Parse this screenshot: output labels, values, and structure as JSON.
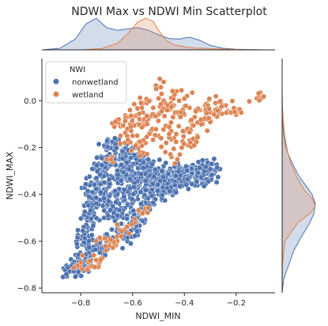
{
  "chart_data": {
    "type": "scatter",
    "title": "NDWI Max vs NDWI Min Scatterplot",
    "xlabel": "NDWI_MIN",
    "ylabel": "NDWI_MAX",
    "xlim": [
      -0.95,
      -0.05
    ],
    "ylim": [
      -0.82,
      0.18
    ],
    "xticks": [
      -0.8,
      -0.6,
      -0.4,
      -0.2
    ],
    "xtick_labels": [
      "−0.8",
      "−0.6",
      "−0.4",
      "−0.2"
    ],
    "yticks": [
      -0.8,
      -0.6,
      -0.4,
      -0.2,
      0.0
    ],
    "ytick_labels": [
      "−0.8",
      "−0.6",
      "−0.4",
      "−0.2",
      "0.0"
    ],
    "legend": {
      "title": "NWI",
      "position": "upper-left",
      "entries": [
        "nonwetland",
        "wetland"
      ]
    },
    "colors": {
      "nonwetland": "#4c72b0",
      "wetland": "#dd8452",
      "axis": "#262626",
      "marker_edge": "#ffffff"
    },
    "series": [
      {
        "name": "nonwetland",
        "description_points": [
          [
            -0.82,
            -0.72
          ],
          [
            -0.8,
            -0.71
          ],
          [
            -0.78,
            -0.66
          ],
          [
            -0.79,
            -0.6
          ],
          [
            -0.77,
            -0.55
          ],
          [
            -0.75,
            -0.48
          ],
          [
            -0.74,
            -0.42
          ],
          [
            -0.76,
            -0.35
          ],
          [
            -0.73,
            -0.3
          ],
          [
            -0.71,
            -0.25
          ],
          [
            -0.7,
            -0.21
          ],
          [
            -0.68,
            -0.18
          ],
          [
            -0.66,
            -0.2
          ],
          [
            -0.64,
            -0.22
          ],
          [
            -0.62,
            -0.25
          ],
          [
            -0.6,
            -0.2
          ],
          [
            -0.58,
            -0.28
          ],
          [
            -0.56,
            -0.31
          ],
          [
            -0.54,
            -0.33
          ],
          [
            -0.52,
            -0.3
          ],
          [
            -0.5,
            -0.33
          ],
          [
            -0.48,
            -0.35
          ],
          [
            -0.46,
            -0.34
          ],
          [
            -0.44,
            -0.32
          ],
          [
            -0.42,
            -0.33
          ],
          [
            -0.4,
            -0.31
          ],
          [
            -0.38,
            -0.35
          ],
          [
            -0.36,
            -0.3
          ],
          [
            -0.33,
            -0.33
          ],
          [
            -0.32,
            -0.29
          ],
          [
            -0.8,
            -0.58
          ],
          [
            -0.78,
            -0.5
          ],
          [
            -0.76,
            -0.44
          ],
          [
            -0.74,
            -0.38
          ],
          [
            -0.72,
            -0.35
          ],
          [
            -0.7,
            -0.4
          ],
          [
            -0.68,
            -0.45
          ],
          [
            -0.66,
            -0.5
          ],
          [
            -0.64,
            -0.56
          ],
          [
            -0.62,
            -0.6
          ],
          [
            -0.6,
            -0.55
          ],
          [
            -0.58,
            -0.5
          ],
          [
            -0.56,
            -0.45
          ],
          [
            -0.54,
            -0.42
          ],
          [
            -0.52,
            -0.38
          ],
          [
            -0.5,
            -0.4
          ],
          [
            -0.48,
            -0.37
          ],
          [
            -0.46,
            -0.39
          ],
          [
            -0.44,
            -0.36
          ],
          [
            -0.7,
            -0.6
          ],
          [
            -0.72,
            -0.65
          ],
          [
            -0.76,
            -0.68
          ],
          [
            -0.74,
            -0.62
          ],
          [
            -0.68,
            -0.55
          ],
          [
            -0.66,
            -0.42
          ],
          [
            -0.64,
            -0.38
          ],
          [
            -0.62,
            -0.34
          ],
          [
            -0.6,
            -0.32
          ],
          [
            -0.58,
            -0.36
          ],
          [
            -0.56,
            -0.38
          ],
          [
            -0.84,
            -0.73
          ],
          [
            -0.81,
            -0.68
          ],
          [
            -0.72,
            -0.28
          ],
          [
            -0.69,
            -0.26
          ],
          [
            -0.65,
            -0.3
          ],
          [
            -0.63,
            -0.29
          ],
          [
            -0.6,
            -0.27
          ],
          [
            -0.55,
            -0.27
          ],
          [
            -0.5,
            -0.29
          ],
          [
            -0.45,
            -0.3
          ],
          [
            -0.42,
            -0.29
          ],
          [
            -0.37,
            -0.31
          ],
          [
            -0.35,
            -0.34
          ],
          [
            -0.3,
            -0.32
          ],
          [
            -0.29,
            -0.27
          ],
          [
            -0.65,
            -0.48
          ],
          [
            -0.58,
            -0.42
          ],
          [
            -0.53,
            -0.36
          ],
          [
            -0.47,
            -0.33
          ],
          [
            -0.62,
            -0.44
          ],
          [
            -0.78,
            -0.62
          ],
          [
            -0.71,
            -0.5
          ],
          [
            -0.67,
            -0.33
          ],
          [
            -0.61,
            -0.38
          ],
          [
            -0.57,
            -0.24
          ],
          [
            -0.52,
            -0.26
          ],
          [
            -0.49,
            -0.31
          ],
          [
            -0.41,
            -0.35
          ],
          [
            -0.34,
            -0.28
          ],
          [
            -0.77,
            -0.4
          ]
        ],
        "point_count": 90
      },
      {
        "name": "wetland",
        "description_points": [
          [
            -0.65,
            -0.1
          ],
          [
            -0.62,
            -0.12
          ],
          [
            -0.6,
            -0.08
          ],
          [
            -0.58,
            -0.1
          ],
          [
            -0.56,
            -0.05
          ],
          [
            -0.54,
            -0.08
          ],
          [
            -0.52,
            -0.03
          ],
          [
            -0.5,
            -0.06
          ],
          [
            -0.48,
            0.0
          ],
          [
            -0.46,
            -0.04
          ],
          [
            -0.44,
            -0.02
          ],
          [
            -0.42,
            0.0
          ],
          [
            -0.4,
            -0.06
          ],
          [
            -0.38,
            -0.03
          ],
          [
            -0.36,
            -0.07
          ],
          [
            -0.34,
            -0.04
          ],
          [
            -0.32,
            -0.02
          ],
          [
            -0.3,
            -0.05
          ],
          [
            -0.28,
            -0.01
          ],
          [
            -0.26,
            -0.03
          ],
          [
            -0.24,
            -0.02
          ],
          [
            -0.22,
            -0.05
          ],
          [
            -0.2,
            -0.06
          ],
          [
            -0.12,
            0.01
          ],
          [
            -0.48,
            0.08
          ],
          [
            -0.5,
            -0.15
          ],
          [
            -0.47,
            -0.18
          ],
          [
            -0.44,
            -0.16
          ],
          [
            -0.41,
            -0.2
          ],
          [
            -0.38,
            -0.17
          ],
          [
            -0.55,
            -0.18
          ],
          [
            -0.58,
            -0.2
          ],
          [
            -0.6,
            -0.15
          ],
          [
            -0.63,
            -0.18
          ],
          [
            -0.53,
            -0.13
          ],
          [
            -0.46,
            -0.11
          ],
          [
            -0.4,
            -0.13
          ],
          [
            -0.35,
            -0.15
          ],
          [
            -0.33,
            -0.1
          ],
          [
            -0.68,
            -0.24
          ],
          [
            -0.57,
            -0.22
          ],
          [
            -0.45,
            -0.24
          ],
          [
            -0.42,
            -0.06
          ],
          [
            -0.37,
            -0.1
          ],
          [
            -0.31,
            -0.08
          ],
          [
            -0.27,
            -0.06
          ],
          [
            -0.61,
            -0.04
          ],
          [
            -0.56,
            -0.01
          ],
          [
            -0.43,
            0.04
          ],
          [
            -0.39,
            0.02
          ],
          [
            -0.8,
            -0.71
          ],
          [
            -0.77,
            -0.69
          ],
          [
            -0.75,
            -0.66
          ],
          [
            -0.73,
            -0.7
          ],
          [
            -0.72,
            -0.59
          ],
          [
            -0.69,
            -0.62
          ],
          [
            -0.66,
            -0.58
          ],
          [
            -0.63,
            -0.55
          ],
          [
            -0.59,
            -0.52
          ],
          [
            -0.55,
            -0.46
          ]
        ],
        "point_count": 60
      }
    ],
    "marginals": {
      "x_kde": {
        "nonwetland": {
          "x": [
            -0.95,
            -0.88,
            -0.82,
            -0.78,
            -0.74,
            -0.7,
            -0.66,
            -0.62,
            -0.58,
            -0.54,
            -0.5,
            -0.46,
            -0.42,
            -0.38,
            -0.34,
            -0.3,
            -0.25,
            -0.2,
            -0.1
          ],
          "density": [
            0.0,
            0.05,
            0.35,
            0.82,
            1.0,
            0.7,
            0.62,
            0.66,
            0.7,
            0.62,
            0.48,
            0.36,
            0.34,
            0.4,
            0.3,
            0.14,
            0.05,
            0.02,
            0.0
          ]
        },
        "wetland": {
          "x": [
            -0.95,
            -0.8,
            -0.72,
            -0.66,
            -0.62,
            -0.58,
            -0.55,
            -0.52,
            -0.5,
            -0.47,
            -0.44,
            -0.4,
            -0.36,
            -0.3,
            -0.24,
            -0.18,
            -0.1
          ],
          "density": [
            0.0,
            0.0,
            0.04,
            0.2,
            0.5,
            0.88,
            1.0,
            0.9,
            0.62,
            0.3,
            0.16,
            0.1,
            0.06,
            0.04,
            0.02,
            0.01,
            0.0
          ]
        }
      },
      "y_kde": {
        "nonwetland": {
          "y": [
            -0.82,
            -0.76,
            -0.7,
            -0.64,
            -0.58,
            -0.52,
            -0.48,
            -0.44,
            -0.4,
            -0.36,
            -0.32,
            -0.28,
            -0.24,
            -0.2,
            -0.16,
            -0.1,
            0.0,
            0.1
          ],
          "density": [
            0.0,
            0.05,
            0.2,
            0.35,
            0.58,
            0.84,
            0.96,
            1.0,
            0.9,
            0.7,
            0.5,
            0.35,
            0.22,
            0.12,
            0.06,
            0.02,
            0.0,
            0.0
          ]
        },
        "wetland": {
          "y": [
            -0.82,
            -0.7,
            -0.6,
            -0.52,
            -0.48,
            -0.45,
            -0.42,
            -0.38,
            -0.32,
            -0.26,
            -0.2,
            -0.14,
            -0.08,
            -0.02,
            0.05,
            0.12
          ],
          "density": [
            0.0,
            0.01,
            0.08,
            0.48,
            0.85,
            1.0,
            0.92,
            0.66,
            0.42,
            0.24,
            0.14,
            0.07,
            0.03,
            0.01,
            0.0,
            0.0
          ]
        }
      }
    }
  }
}
